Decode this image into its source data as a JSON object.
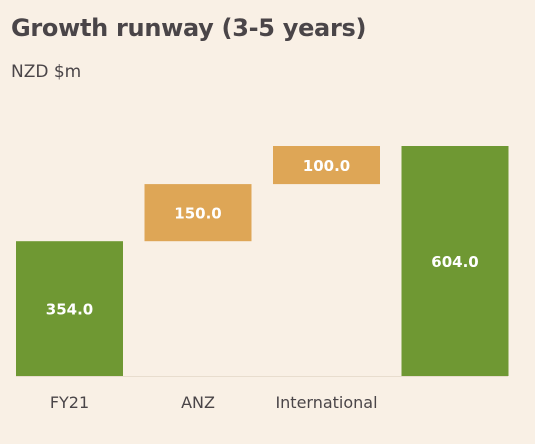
{
  "title": "Growth runway (3-5 years)",
  "subtitle": "NZD $m",
  "colors": {
    "background": "#f9f0e5",
    "total_bar": "#6f9833",
    "increment_bar": "#dea656",
    "bar_label": "#ffffff",
    "text": "#4a4548"
  },
  "chart_data": {
    "type": "bar",
    "subtype": "waterfall",
    "title": "Growth runway (3-5 years)",
    "subtitle": "NZD $m",
    "xlabel": "",
    "ylabel": "",
    "categories": [
      "FY21",
      "ANZ",
      "International",
      ""
    ],
    "values": [
      354.0,
      150.0,
      100.0,
      604.0
    ],
    "bar_kinds": [
      "total",
      "increment",
      "increment",
      "total"
    ],
    "data_labels": [
      "354.0",
      "150.0",
      "100.0",
      "604.0"
    ],
    "ylim": [
      0,
      604
    ],
    "grid": false,
    "legend": "none"
  }
}
